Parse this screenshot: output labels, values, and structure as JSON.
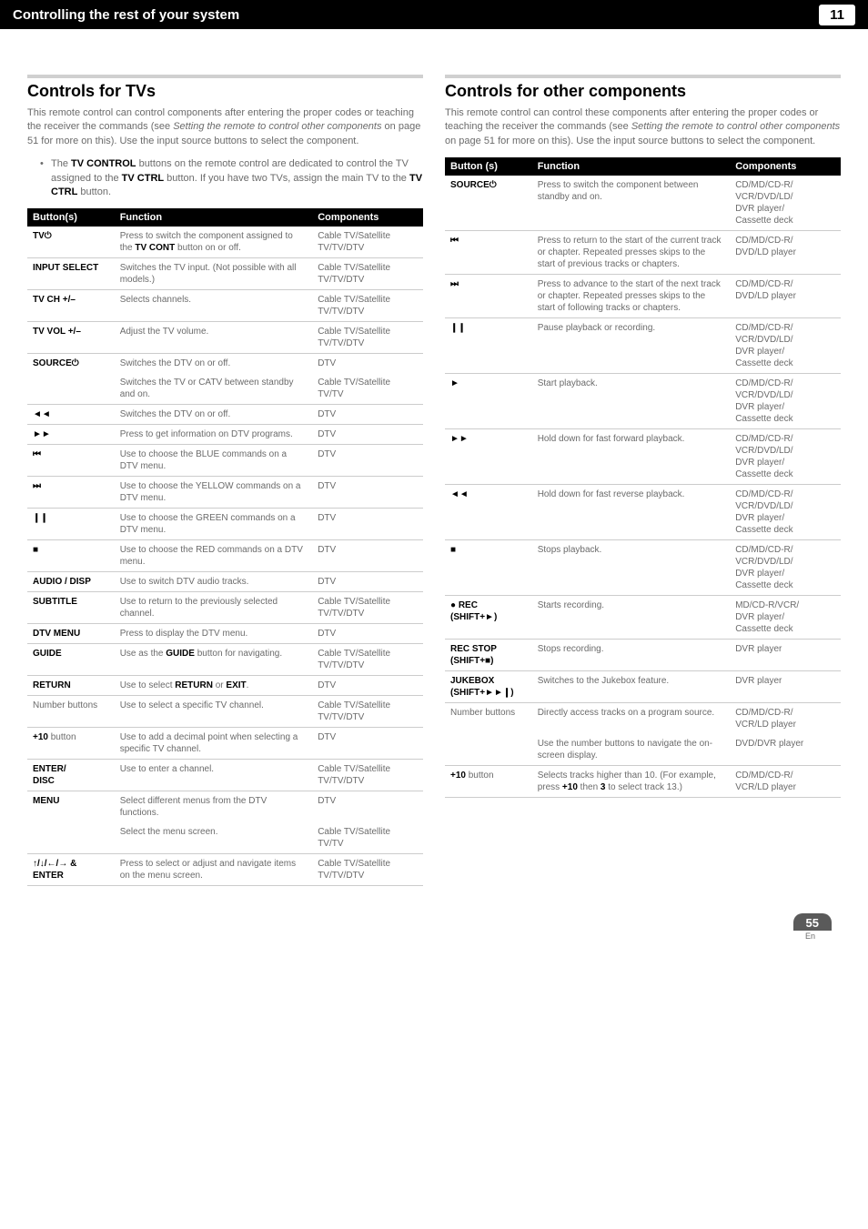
{
  "header": {
    "title": "Controlling the rest of your system",
    "chapter": "11"
  },
  "left": {
    "section_title": "Controls for TVs",
    "intro": "This remote control can control components after entering the proper codes or teaching the receiver the commands (see ",
    "intro_em": "Setting the remote to control other components",
    "intro2": " on page 51 for more on this). Use the input source buttons to select the component.",
    "bullet": "The ",
    "bullet_b1": "TV CONTROL",
    "bullet_mid": " buttons on the remote control are dedicated to control the TV assigned to the ",
    "bullet_b2": "TV CTRL",
    "bullet_mid2": " button. If you have two TVs, assign the main TV to the ",
    "bullet_b3": "TV CTRL",
    "bullet_end": " button.",
    "table": {
      "headers": [
        "Button(s)",
        "Function",
        "Components"
      ],
      "rows": [
        {
          "b": "TV⏻",
          "f": [
            "Press to switch the component assigned to the ",
            {
              "bold": "TV CONT"
            },
            " button on or off."
          ],
          "c": "Cable TV/Satellite TV/TV/DTV"
        },
        {
          "b": "INPUT SELECT",
          "f": [
            "Switches the TV input. (Not possible with all models.)"
          ],
          "c": "Cable TV/Satellite TV/TV/DTV"
        },
        {
          "b": "TV CH +/–",
          "f": [
            "Selects channels."
          ],
          "c": "Cable TV/Satellite TV/TV/DTV"
        },
        {
          "b": "TV VOL +/–",
          "f": [
            "Adjust the TV volume."
          ],
          "c": "Cable TV/Satellite TV/TV/DTV"
        },
        {
          "b": "SOURCE⏻",
          "f": [
            "Switches the DTV on or off."
          ],
          "c": "DTV",
          "noborder": true
        },
        {
          "b": "",
          "f": [
            "Switches the TV or CATV between standby and on."
          ],
          "c": "Cable TV/Satellite TV/TV"
        },
        {
          "b": "◄◄",
          "f": [
            "Switches the DTV on or off."
          ],
          "c": "DTV"
        },
        {
          "b": "►►",
          "f": [
            "Press to get information on DTV programs."
          ],
          "c": "DTV"
        },
        {
          "b": "⏮",
          "f": [
            "Use to choose the BLUE commands on a DTV menu."
          ],
          "c": "DTV"
        },
        {
          "b": "⏭",
          "f": [
            "Use to choose the YELLOW commands on a DTV menu."
          ],
          "c": "DTV"
        },
        {
          "b": "❙❙",
          "f": [
            "Use to choose the GREEN commands on a DTV menu."
          ],
          "c": "DTV"
        },
        {
          "b": "■",
          "f": [
            "Use to choose the RED commands on a DTV menu."
          ],
          "c": "DTV"
        },
        {
          "b": "AUDIO / DISP",
          "f": [
            "Use to switch DTV audio tracks."
          ],
          "c": "DTV"
        },
        {
          "b": "SUBTITLE",
          "f": [
            "Use to return to the previously selected channel."
          ],
          "c": "Cable TV/Satellite TV/TV/DTV"
        },
        {
          "b": "DTV MENU",
          "f": [
            "Press to display the DTV menu."
          ],
          "c": "DTV"
        },
        {
          "b": "GUIDE",
          "f": [
            "Use as the ",
            {
              "bold": "GUIDE"
            },
            " button for navigating."
          ],
          "c": "Cable TV/Satellite TV/TV/DTV"
        },
        {
          "b": "RETURN",
          "f": [
            "Use to select ",
            {
              "bold": "RETURN"
            },
            " or ",
            {
              "bold": "EXIT"
            },
            "."
          ],
          "c": "DTV"
        },
        {
          "b": "Number buttons",
          "bplain": true,
          "f": [
            "Use to select a specific TV channel."
          ],
          "c": "Cable TV/Satellite TV/TV/DTV"
        },
        {
          "b": "+10",
          "bextra": " button",
          "f": [
            "Use to add a decimal point when selecting a specific TV channel."
          ],
          "c": "DTV"
        },
        {
          "b": "ENTER/\nDISC",
          "f": [
            "Use to enter a channel."
          ],
          "c": "Cable TV/Satellite TV/TV/DTV"
        },
        {
          "b": "MENU",
          "f": [
            "Select different menus from the DTV functions."
          ],
          "c": "DTV",
          "noborder": true
        },
        {
          "b": "",
          "f": [
            "Select the menu screen."
          ],
          "c": "Cable TV/Satellite TV/TV"
        },
        {
          "b": "↑/↓/←/→ & ENTER",
          "f": [
            "Press to select or adjust and navigate items on the menu screen."
          ],
          "c": "Cable TV/Satellite TV/TV/DTV"
        }
      ]
    }
  },
  "right": {
    "section_title": "Controls for other components",
    "intro": "This remote control can control these components after entering the proper codes or teaching the receiver the commands (see ",
    "intro_em": "Setting the remote to control other components",
    "intro2": " on page 51 for more on this). Use the input source buttons to select the component.",
    "table": {
      "headers": [
        "Button (s)",
        "Function",
        "Components"
      ],
      "rows": [
        {
          "b": "SOURCE⏻",
          "f": [
            "Press to switch the component between standby and on."
          ],
          "c": "CD/MD/CD-R/\nVCR/DVD/LD/\nDVR player/\nCassette deck"
        },
        {
          "b": "⏮",
          "f": [
            "Press to return to the start of the current track or chapter. Repeated presses skips to the start of previous tracks or chapters."
          ],
          "c": "CD/MD/CD-R/\nDVD/LD player"
        },
        {
          "b": "⏭",
          "f": [
            "Press to advance to the start of the next track or chapter. Repeated presses skips to the start of following tracks or chapters."
          ],
          "c": "CD/MD/CD-R/\nDVD/LD player"
        },
        {
          "b": "❙❙",
          "f": [
            "Pause playback or recording."
          ],
          "c": "CD/MD/CD-R/\nVCR/DVD/LD/\nDVR player/\nCassette deck"
        },
        {
          "b": "►",
          "f": [
            "Start playback."
          ],
          "c": "CD/MD/CD-R/\nVCR/DVD/LD/\nDVR player/\nCassette deck"
        },
        {
          "b": "►►",
          "f": [
            "Hold down for fast forward playback."
          ],
          "c": "CD/MD/CD-R/\nVCR/DVD/LD/\nDVR player/\nCassette deck"
        },
        {
          "b": "◄◄",
          "f": [
            "Hold down for fast reverse playback."
          ],
          "c": "CD/MD/CD-R/\nVCR/DVD/LD/\nDVR player/\nCassette deck"
        },
        {
          "b": "■",
          "f": [
            "Stops playback."
          ],
          "c": "CD/MD/CD-R/\nVCR/DVD/LD/\nDVR player/\nCassette deck"
        },
        {
          "b": "● REC\n(SHIFT+►)",
          "f": [
            "Starts recording."
          ],
          "c": "MD/CD-R/VCR/\nDVR player/\nCassette deck"
        },
        {
          "b": "REC STOP\n(SHIFT+■)",
          "f": [
            "Stops recording."
          ],
          "c": "DVR player"
        },
        {
          "b": "JUKEBOX\n(SHIFT+►►❙)",
          "f": [
            "Switches to the Jukebox feature."
          ],
          "c": "DVR player"
        },
        {
          "b": "Number buttons",
          "bplain": true,
          "f": [
            "Directly access tracks on a program source."
          ],
          "c": "CD/MD/CD-R/\nVCR/LD player",
          "noborder": true
        },
        {
          "b": "",
          "f": [
            "Use the number buttons to navigate the on-screen display."
          ],
          "c": "DVD/DVR player"
        },
        {
          "b": "+10",
          "bextra": " button",
          "f": [
            "Selects tracks higher than 10. (For example, press ",
            {
              "bold": "+10"
            },
            " then ",
            {
              "bold": "3"
            },
            " to select track 13.)"
          ],
          "c": "CD/MD/CD-R/\nVCR/LD player"
        }
      ]
    }
  },
  "footer": {
    "page": "55",
    "lang": "En"
  }
}
